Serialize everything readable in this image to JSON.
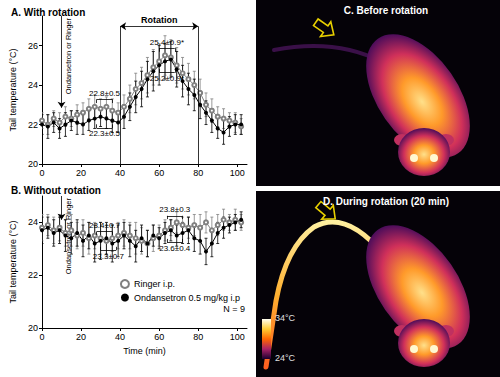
{
  "chart_data": [
    {
      "type": "line",
      "title": "A. With rotation",
      "y_label": "Tail temperature (°C)",
      "grid": false,
      "x": [
        0,
        3,
        6,
        9,
        12,
        15,
        18,
        21,
        24,
        27,
        30,
        33,
        36,
        39,
        42,
        45,
        48,
        51,
        54,
        57,
        60,
        63,
        66,
        69,
        72,
        75,
        78,
        81,
        84,
        87,
        90,
        93,
        96,
        99,
        102
      ],
      "xlim": [
        0,
        105
      ],
      "xticks": [
        0,
        20,
        40,
        60,
        80,
        100
      ],
      "ylim": [
        20,
        27.5
      ],
      "yticks": [
        20,
        22,
        24,
        26
      ],
      "series": [
        {
          "name": "Ringer i.p.",
          "color": "#808080",
          "marker": "open circle",
          "line_style": "solid",
          "values": [
            22.2,
            22.0,
            22.3,
            22.1,
            22.4,
            22.3,
            22.5,
            22.6,
            22.8,
            22.9,
            22.8,
            22.9,
            22.7,
            22.6,
            22.9,
            23.3,
            23.8,
            24.1,
            24.5,
            24.9,
            25.2,
            25.5,
            25.4,
            25.0,
            24.6,
            24.3,
            24.0,
            23.6,
            23.0,
            22.7,
            22.4,
            22.3,
            22.2,
            22.1,
            21.9
          ],
          "errors": [
            0.4,
            0.5,
            0.4,
            0.5,
            0.5,
            0.4,
            0.5,
            0.5,
            0.5,
            0.6,
            0.5,
            0.5,
            0.6,
            0.5,
            0.6,
            0.7,
            0.8,
            0.8,
            0.9,
            0.9,
            0.9,
            1.0,
            0.9,
            0.9,
            0.8,
            0.8,
            0.7,
            0.7,
            0.6,
            0.6,
            0.5,
            0.5,
            0.4,
            0.5,
            0.4
          ]
        },
        {
          "name": "Ondansetron 0.5 mg/kg i.p",
          "color": "#000000",
          "marker": "filled circle",
          "line_style": "solid",
          "values": [
            22.0,
            21.9,
            22.1,
            21.8,
            22.0,
            22.2,
            22.1,
            22.0,
            22.2,
            22.3,
            22.4,
            22.3,
            22.2,
            22.1,
            22.4,
            22.9,
            23.4,
            23.8,
            24.3,
            24.7,
            25.0,
            25.2,
            25.3,
            24.8,
            24.2,
            23.8,
            23.5,
            23.0,
            22.6,
            22.2,
            21.8,
            21.6,
            21.9,
            22.0,
            22.0
          ],
          "errors": [
            0.5,
            0.6,
            0.5,
            0.5,
            0.6,
            0.5,
            0.6,
            0.5,
            0.5,
            0.5,
            0.5,
            0.5,
            0.6,
            0.5,
            0.6,
            0.7,
            0.8,
            0.9,
            0.9,
            1.0,
            1.0,
            0.9,
            0.9,
            0.9,
            0.8,
            0.8,
            0.8,
            0.7,
            0.6,
            0.6,
            0.5,
            0.6,
            0.5,
            0.5,
            0.5
          ]
        }
      ],
      "event": {
        "text": "Ondansetron or Ringer",
        "x": 10
      },
      "period": {
        "text": "Rotation",
        "x": [
          40,
          80
        ]
      },
      "annotations": [
        {
          "text": "22.8±0.5",
          "x": [
            28,
            36
          ],
          "position": "above"
        },
        {
          "text": "22.3±0.5",
          "x": [
            28,
            36
          ],
          "position": "below"
        },
        {
          "text": "25.4±0.9*",
          "x": [
            60,
            68
          ],
          "position": "above"
        },
        {
          "text": "25.2±0.9*",
          "x": [
            60,
            68
          ],
          "position": "below"
        }
      ]
    },
    {
      "type": "line",
      "title": "B. Without rotation",
      "x_label": "Time (min)",
      "y_label": "Tail temperature (°C)",
      "grid": false,
      "legend": "right",
      "note": "N = 9",
      "x": [
        0,
        3,
        6,
        9,
        12,
        15,
        18,
        21,
        24,
        27,
        30,
        33,
        36,
        39,
        42,
        45,
        48,
        51,
        54,
        57,
        60,
        63,
        66,
        69,
        72,
        75,
        78,
        81,
        84,
        87,
        90,
        93,
        96,
        99,
        102
      ],
      "xlim": [
        0,
        105
      ],
      "xticks": [
        0,
        20,
        40,
        60,
        80,
        100
      ],
      "ylim": [
        20,
        25
      ],
      "yticks": [
        20,
        22,
        24
      ],
      "series": [
        {
          "name": "Ringer i.p.",
          "color": "#808080",
          "marker": "open circle",
          "line_style": "solid",
          "values": [
            23.8,
            23.9,
            23.7,
            23.8,
            23.6,
            23.7,
            23.5,
            23.6,
            23.4,
            23.5,
            23.4,
            23.3,
            23.4,
            23.5,
            23.6,
            23.5,
            23.4,
            23.3,
            23.2,
            23.4,
            23.5,
            23.7,
            23.8,
            24.0,
            23.9,
            23.8,
            23.9,
            23.8,
            24.0,
            23.7,
            23.9,
            24.1,
            24.0,
            24.1,
            24.0
          ],
          "errors": [
            0.5,
            0.4,
            0.5,
            0.5,
            0.5,
            0.6,
            0.5,
            0.5,
            0.6,
            0.5,
            0.6,
            0.6,
            0.5,
            0.5,
            0.5,
            0.5,
            0.6,
            0.5,
            0.5,
            0.5,
            0.4,
            0.4,
            0.3,
            0.4,
            0.3,
            0.4,
            0.4,
            0.5,
            0.4,
            0.5,
            0.4,
            0.4,
            0.3,
            0.4,
            0.3
          ]
        },
        {
          "name": "Ondansetron 0.5 mg/kg i.p",
          "color": "#000000",
          "marker": "filled circle",
          "line_style": "solid",
          "values": [
            23.7,
            23.8,
            23.6,
            23.7,
            23.5,
            23.4,
            23.6,
            23.3,
            23.5,
            23.2,
            23.3,
            23.4,
            23.2,
            23.3,
            23.5,
            23.3,
            23.1,
            23.4,
            23.2,
            23.5,
            23.4,
            23.6,
            23.7,
            23.5,
            23.6,
            23.7,
            23.4,
            23.3,
            22.9,
            23.2,
            23.6,
            23.8,
            23.9,
            24.0,
            24.1
          ],
          "errors": [
            0.5,
            0.4,
            0.5,
            0.5,
            0.6,
            0.6,
            0.5,
            0.6,
            0.5,
            0.7,
            0.7,
            0.6,
            0.7,
            0.6,
            0.5,
            0.6,
            0.6,
            0.5,
            0.5,
            0.4,
            0.4,
            0.4,
            0.4,
            0.4,
            0.4,
            0.5,
            0.5,
            0.5,
            0.5,
            0.5,
            0.4,
            0.4,
            0.3,
            0.3,
            0.3
          ]
        }
      ],
      "event": {
        "text": "Ondansetron or Ringer",
        "x": 10
      },
      "annotations": [
        {
          "text": "23.4±0.7",
          "x": [
            28,
            36
          ],
          "position": "above"
        },
        {
          "text": "23.3±0.7",
          "x": [
            30,
            38
          ],
          "position": "below"
        },
        {
          "text": "23.8±0.3",
          "x": [
            64,
            72
          ],
          "position": "above"
        },
        {
          "text": "23.6±0.4",
          "x": [
            64,
            72
          ],
          "position": "below"
        }
      ]
    }
  ],
  "images": [
    {
      "title": "C. Before rotation"
    },
    {
      "title": "D. During rotation (20 min)",
      "colorbar": {
        "range": [
          24,
          34
        ],
        "ticks": [
          {
            "value": 34,
            "label": "34°C"
          },
          {
            "value": 24,
            "label": "24°C"
          }
        ]
      }
    }
  ]
}
